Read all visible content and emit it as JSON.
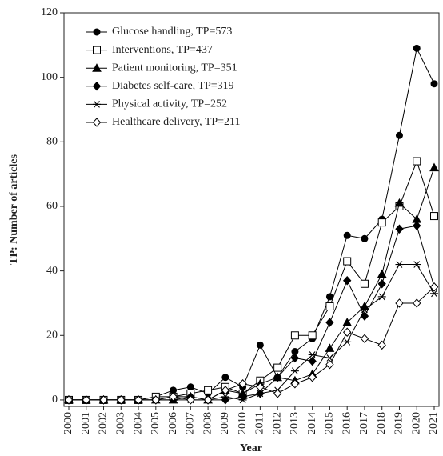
{
  "chart_data": {
    "type": "line",
    "x_label": "Year",
    "y_label": "TP: Number of articles",
    "categories": [
      "2000",
      "2001",
      "2002",
      "2003",
      "2004",
      "2005",
      "2006",
      "2007",
      "2008",
      "2009",
      "2010",
      "2011",
      "2012",
      "2013",
      "2014",
      "2015",
      "2016",
      "2017",
      "2018",
      "2019",
      "2020",
      "2021"
    ],
    "series": [
      {
        "name": "Glucose handling, TP=573",
        "color": "#000000",
        "marker": "circle",
        "fill": true,
        "values": [
          0,
          0,
          0,
          0,
          0,
          1,
          3,
          4,
          2,
          7,
          4,
          17,
          7,
          15,
          19,
          32,
          51,
          50,
          56,
          82,
          109,
          98
        ]
      },
      {
        "name": "Interventions, TP=437",
        "color": "#000000",
        "marker": "square",
        "fill": false,
        "values": [
          0,
          0,
          0,
          0,
          0,
          1,
          1,
          2,
          3,
          4,
          2,
          6,
          10,
          20,
          20,
          29,
          43,
          36,
          55,
          60,
          74,
          57
        ]
      },
      {
        "name": "Patient monitoring, TP=351",
        "color": "#000000",
        "marker": "triangle",
        "fill": true,
        "values": [
          0,
          0,
          0,
          0,
          0,
          0,
          0,
          1,
          0,
          3,
          2,
          5,
          7,
          6,
          8,
          16,
          24,
          29,
          39,
          61,
          56,
          72
        ]
      },
      {
        "name": "Diabetes self-care, TP=319",
        "color": "#000000",
        "marker": "diamond",
        "fill": true,
        "values": [
          0,
          0,
          0,
          0,
          0,
          0,
          1,
          1,
          0,
          0,
          1,
          2,
          7,
          13,
          12,
          24,
          37,
          26,
          36,
          53,
          54,
          35
        ]
      },
      {
        "name": "Physical activity, TP=252",
        "color": "#000000",
        "marker": "star",
        "fill": false,
        "values": [
          0,
          0,
          0,
          0,
          0,
          0,
          0,
          0,
          0,
          1,
          0,
          2,
          3,
          9,
          14,
          13,
          18,
          28,
          32,
          42,
          42,
          33
        ]
      },
      {
        "name": "Healthcare delivery, TP=211",
        "color": "#000000",
        "marker": "diamond",
        "fill": false,
        "values": [
          0,
          0,
          0,
          0,
          0,
          0,
          1,
          0,
          0,
          3,
          5,
          4,
          2,
          5,
          7,
          11,
          21,
          19,
          17,
          30,
          30,
          35
        ]
      }
    ],
    "ylim": [
      -2,
      120
    ],
    "yticks": [
      0,
      20,
      40,
      60,
      80,
      100,
      120
    ],
    "grid": false,
    "legend": "upper left"
  }
}
